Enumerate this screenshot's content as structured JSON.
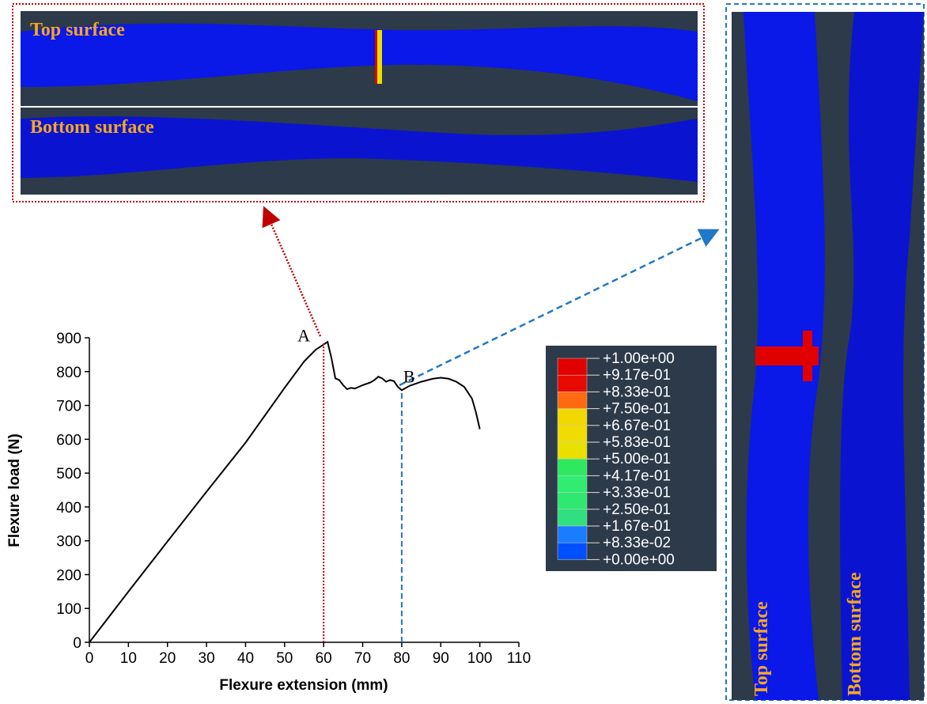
{
  "chart_data": {
    "type": "line",
    "xlabel": "Flexure extension (mm)",
    "ylabel": "Flexure load (N)",
    "x": [
      0,
      10,
      20,
      30,
      40,
      50,
      55,
      58,
      60,
      61,
      62,
      63,
      64,
      65,
      66,
      67,
      68,
      70,
      72,
      73,
      74,
      75,
      76,
      77,
      78,
      79,
      80,
      82,
      85,
      88,
      90,
      92,
      94,
      96,
      98,
      99,
      100
    ],
    "series": [
      {
        "color": "#000000",
        "values": [
          0,
          150,
          298,
          445,
          590,
          752,
          830,
          865,
          880,
          888,
          840,
          780,
          775,
          760,
          748,
          752,
          750,
          760,
          768,
          775,
          785,
          780,
          770,
          775,
          772,
          755,
          745,
          758,
          770,
          779,
          782,
          779,
          770,
          755,
          720,
          680,
          630
        ]
      }
    ],
    "xlim": [
      0,
      110
    ],
    "ylim": [
      0,
      900
    ],
    "xticks": [
      0,
      10,
      20,
      30,
      40,
      50,
      60,
      70,
      80,
      90,
      100,
      110
    ],
    "yticks": [
      0,
      100,
      200,
      300,
      400,
      500,
      600,
      700,
      800,
      900
    ],
    "markers": [
      {
        "label": "A",
        "x": 60,
        "y": 885,
        "color": "#c00000"
      },
      {
        "label": "B",
        "x": 80,
        "y": 745,
        "color": "#1f78c8"
      }
    ]
  },
  "colorbar": {
    "labels": [
      "+1.00e+00",
      "+9.17e-01",
      "+8.33e-01",
      "+7.50e-01",
      "+6.67e-01",
      "+5.83e-01",
      "+5.00e-01",
      "+4.17e-01",
      "+3.33e-01",
      "+2.50e-01",
      "+1.67e-01",
      "+8.33e-02",
      "+0.00e+00"
    ],
    "colors": [
      "#e00000",
      "#e80a00",
      "#ff6a10",
      "#f2d800",
      "#f0dc00",
      "#e8e000",
      "#2ee860",
      "#30ec70",
      "#2ee870",
      "#30e080",
      "#1a7cff",
      "#0050ff"
    ]
  },
  "views": {
    "horizontal": {
      "top": "Top surface",
      "bottom": "Bottom surface"
    },
    "vertical": {
      "top": "Top surface",
      "bottom": "Bottom surface"
    }
  }
}
